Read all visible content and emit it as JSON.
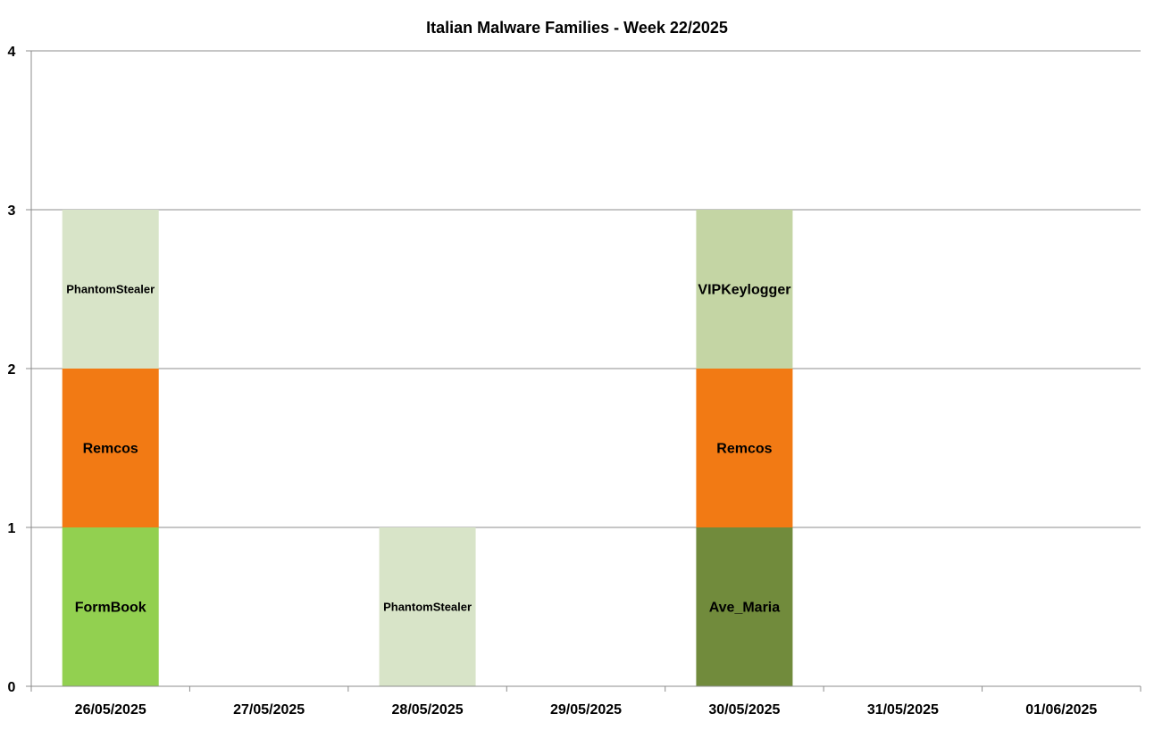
{
  "chart_data": {
    "type": "bar",
    "stacked": true,
    "title": "Italian Malware Families - Week 22/2025",
    "xlabel": "",
    "ylabel": "",
    "ylim": [
      0,
      4
    ],
    "yticks": [
      "0",
      "1",
      "2",
      "3",
      "4"
    ],
    "grid": true,
    "categories": [
      "26/05/2025",
      "27/05/2025",
      "28/05/2025",
      "29/05/2025",
      "30/05/2025",
      "31/05/2025",
      "01/06/2025"
    ],
    "segments": [
      {
        "category": "26/05/2025",
        "label": "FormBook",
        "value": 1,
        "color": "#92d050"
      },
      {
        "category": "26/05/2025",
        "label": "Remcos",
        "value": 1,
        "color": "#f27a14"
      },
      {
        "category": "26/05/2025",
        "label": "PhantomStealer",
        "value": 1,
        "color": "#d8e4c8"
      },
      {
        "category": "28/05/2025",
        "label": "PhantomStealer",
        "value": 1,
        "color": "#d8e4c8"
      },
      {
        "category": "30/05/2025",
        "label": "Ave_Maria",
        "value": 1,
        "color": "#718b3c"
      },
      {
        "category": "30/05/2025",
        "label": "Remcos",
        "value": 1,
        "color": "#f27a14"
      },
      {
        "category": "30/05/2025",
        "label": "VIPKeylogger",
        "value": 1,
        "color": "#c4d5a4"
      }
    ]
  }
}
